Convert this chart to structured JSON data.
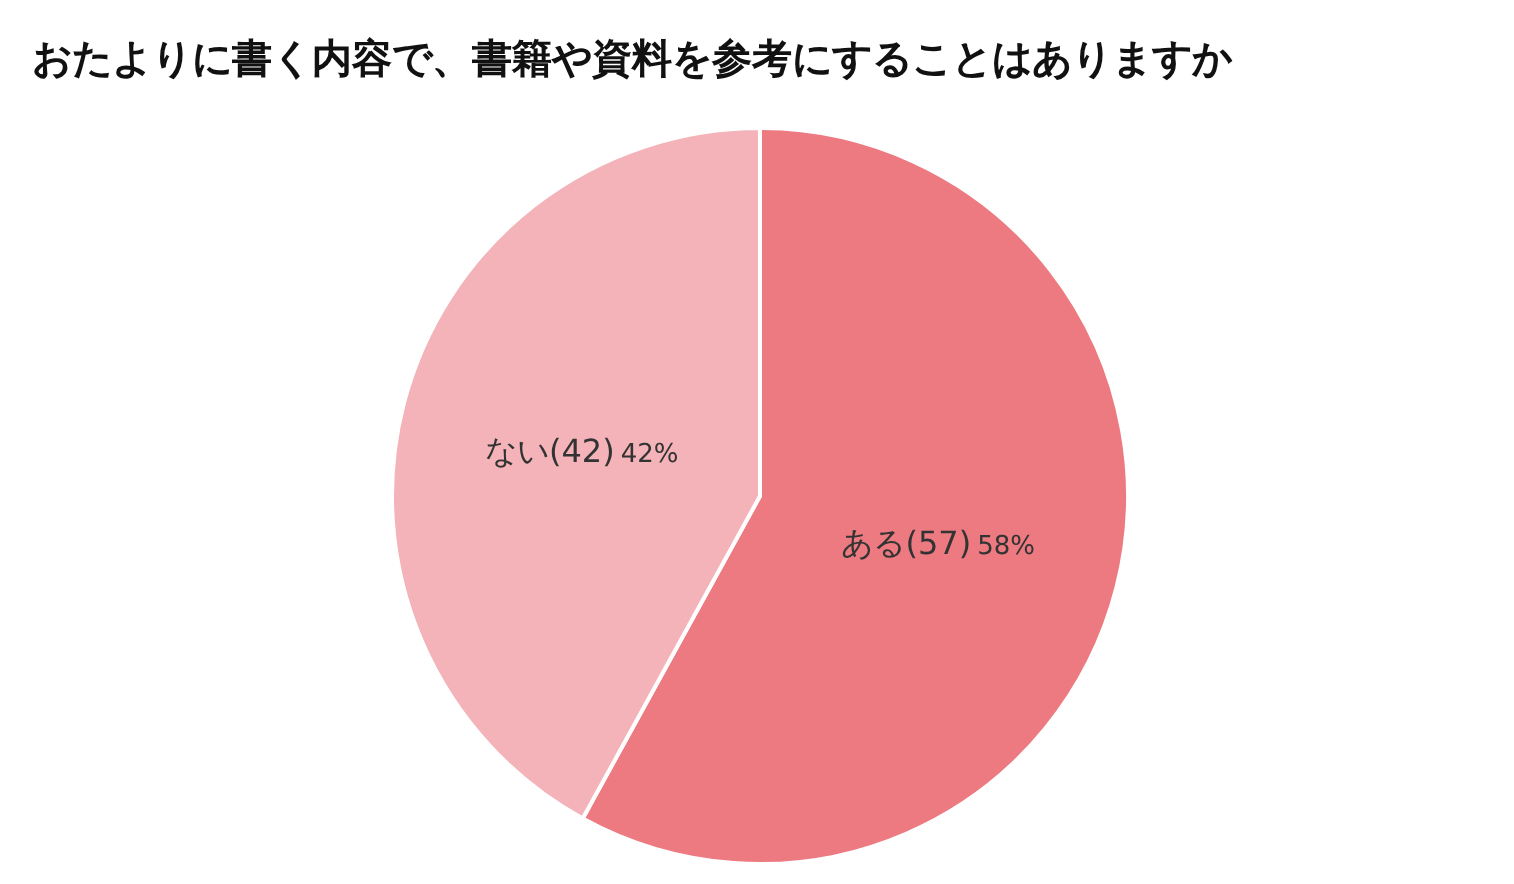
{
  "chart_data": {
    "type": "pie",
    "title": "おたよりに書く内容で、書籍や資料を参考にすることはありますか",
    "categories": [
      "ある(57)",
      "ない(42)"
    ],
    "values": [
      58,
      42
    ],
    "value_labels": [
      "58%",
      "42%"
    ],
    "colors": [
      "#ec7a80",
      "#f4b3b8"
    ]
  }
}
